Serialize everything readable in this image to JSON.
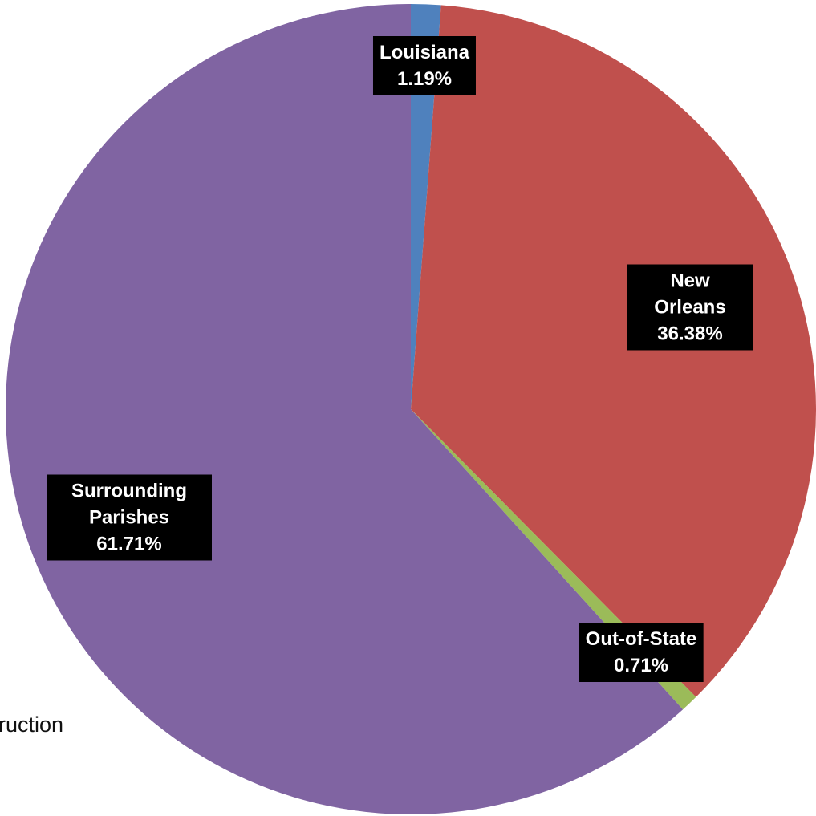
{
  "chart_data": {
    "type": "pie",
    "categories": [
      "Louisiana",
      "New Orleans",
      "Out-of-State",
      "Surrounding Parishes"
    ],
    "values": [
      1.19,
      36.38,
      0.71,
      61.71
    ],
    "value_labels": [
      "1.19%",
      "36.38%",
      "0.71%",
      "61.71%"
    ],
    "colors": [
      "#4f81bd",
      "#c0504d",
      "#9bbb59",
      "#8064a2"
    ]
  },
  "background_text": "ruction"
}
